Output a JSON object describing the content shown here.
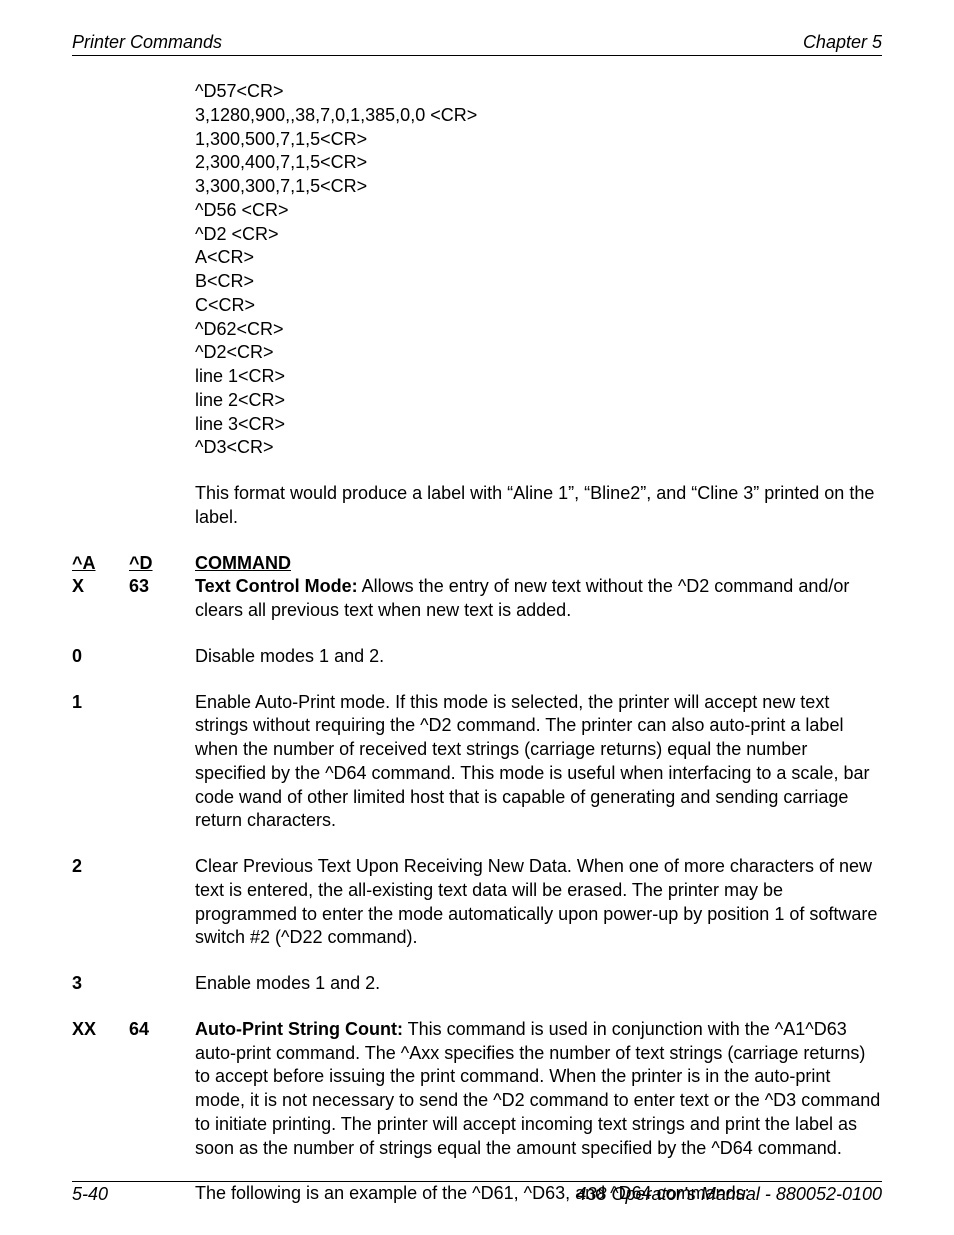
{
  "header": {
    "left": "Printer Commands",
    "right": "Chapter 5"
  },
  "code_lines": [
    "^D57<CR>",
    "3,1280,900,,38,7,0,1,385,0,0 <CR>",
    "1,300,500,7,1,5<CR>",
    "2,300,400,7,1,5<CR>",
    "3,300,300,7,1,5<CR>",
    "^D56 <CR>",
    "^D2 <CR>",
    "A<CR>",
    "B<CR>",
    "C<CR>",
    "^D62<CR>",
    "^D2<CR>",
    "line 1<CR>",
    "line 2<CR>",
    "line 3<CR>",
    "^D3<CR>"
  ],
  "intro_para": "This format would produce a label with “Aline 1”, “Bline2”, and “Cline 3” printed on the label.",
  "col_headers": {
    "a": "^A",
    "d": "^D",
    "cmd": "COMMAND"
  },
  "cmd63": {
    "a": "X",
    "d": "63",
    "title": "Text Control Mode:",
    "desc": " Allows the entry of new text without the ^D2 command and/or clears all previous text when new text is added."
  },
  "opt0": {
    "a": "0",
    "desc": "Disable modes 1 and 2."
  },
  "opt1": {
    "a": "1",
    "desc": "Enable Auto-Print mode.  If this mode is selected, the printer will accept new text strings without requiring the ^D2 command.  The printer can also auto-print a label when the number of received text strings (carriage returns) equal the number specified by the ^D64 command.  This mode is useful when interfacing to a scale, bar code wand of other limited host that is capable of generating and sending carriage return characters."
  },
  "opt2": {
    "a": "2",
    "desc": "Clear Previous Text Upon Receiving New Data.  When one of more characters of new text is entered, the all-existing text data will be erased.  The printer may be programmed to enter the mode automatically upon power-up by position 1 of software switch #2 (^D22 command)."
  },
  "opt3": {
    "a": "3",
    "desc": "Enable modes 1 and 2."
  },
  "cmd64": {
    "a": "XX",
    "d": "64",
    "title": "Auto-Print String Count:",
    "desc": "  This command is used in conjunction with the ^A1^D63 auto-print command.  The ^Axx specifies the number of text strings (carriage returns) to accept before issuing the print command.  When the printer is in the auto-print mode, it is not necessary to send the ^D2 command to enter text or the ^D3 command to initiate printing.  The printer will accept incoming text strings and print the label as soon as the number of strings equal the amount specified by the ^D64 command."
  },
  "closing_para": "The following is an example of the ^D61, ^D63, and ^D64 commands:",
  "footer": {
    "left": "5-40",
    "right": "438 Operator’s Manual - 880052-0100"
  }
}
